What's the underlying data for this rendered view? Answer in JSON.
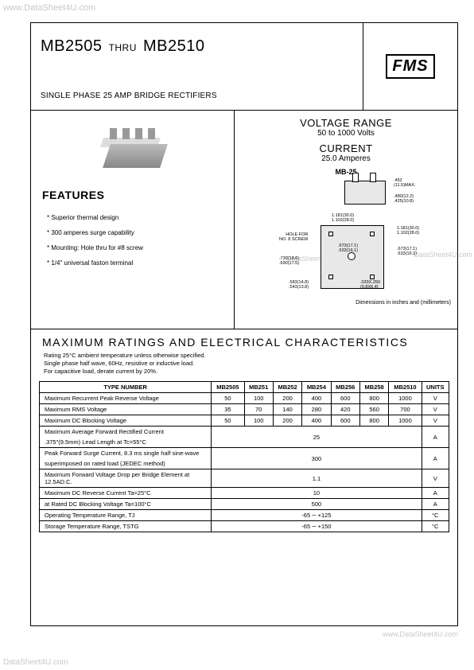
{
  "watermarks": {
    "top": "www.DataSheet4U.com",
    "right": "DataSheet4U.com",
    "center_right": "DataSheet4U.com",
    "bottom_right": "www.DataSheet4U.com",
    "bottom_left": "DataSheet4U.com"
  },
  "header": {
    "part_from": "MB2505",
    "thru": "THRU",
    "part_to": "MB2510",
    "subtitle": "SINGLE PHASE 25 AMP BRIDGE RECTIFIERS",
    "logo": "FMS"
  },
  "voltage_range": {
    "title": "VOLTAGE RANGE",
    "range": "50 to 1000 Volts",
    "current_label": "CURRENT",
    "current": "25.0 Amperes"
  },
  "package_label": "MB-25",
  "dim_note": "Dimensions in inches and (millimeters)",
  "hole_note": "HOLE FOR\nNO. 8 SCREW",
  "dims": {
    "d1": ".452\n(11.5)MAX.",
    "d2": ".480(12.2)\n.425(10.8)",
    "d3": "1.181(30.0)\n1.102(28.0)",
    "d4": ".673(17.1)\n.633(16.1)",
    "d5": "1.181(30.0)\n1.102(28.0)",
    "d6": ".673(17.1)\n.633(16.1)",
    "d7": ".730(18.6)\n.690(17.5)",
    "d8": ".583(14.8)\n.543(13.8)",
    "d9": ".033X.250\n(0.8X6.4)"
  },
  "features": {
    "heading": "FEATURES",
    "items": [
      "* Superior thermal design",
      "* 300 amperes surge capability",
      "* Mounting: Hole thru for #8 screw",
      "* 1/4\" universal faston terminal"
    ]
  },
  "ratings": {
    "heading": "MAXIMUM RATINGS AND ELECTRICAL CHARACTERISTICS",
    "note": "Rating 25°C ambient temperature unless otherwise specified.\nSingle phase half wave, 60Hz, resistive or inductive load.\nFor capacitive load, derate current by 20%.",
    "columns": [
      "TYPE NUMBER",
      "MB2505",
      "MB251",
      "MB252",
      "MB254",
      "MB256",
      "MB258",
      "MB2510",
      "UNITS"
    ],
    "rows": [
      {
        "label": "Maximum Recurrent Peak Reverse Voltage",
        "vals": [
          "50",
          "100",
          "200",
          "400",
          "600",
          "800",
          "1000"
        ],
        "unit": "V"
      },
      {
        "label": "Maximum RMS Voltage",
        "vals": [
          "35",
          "70",
          "140",
          "280",
          "420",
          "560",
          "700"
        ],
        "unit": "V"
      },
      {
        "label": "Maximum DC Blocking Voltage",
        "vals": [
          "50",
          "100",
          "200",
          "400",
          "600",
          "800",
          "1000"
        ],
        "unit": "V"
      }
    ],
    "span_rows": [
      {
        "label_top": "Maximum Average Forward Rectified Current",
        "label_bot": ".375\"(9.5mm) Lead Length at Tc=55°C",
        "val": "25",
        "unit": "A"
      },
      {
        "label_top": "Peak Forward Surge Current, 8.3 ms single half sine-wave",
        "label_bot": "superimposed on rated load (JEDEC method)",
        "val": "300",
        "unit": "A"
      },
      {
        "label_top": "Maximum Forward Voltage Drop per Bridge Element at 12.5AD.C.",
        "label_bot": "",
        "val": "1.1",
        "unit": "V"
      },
      {
        "label_top": "Maximum DC Reverse Current            Ta=25°C",
        "label_bot": "",
        "val": "10",
        "unit": "A"
      },
      {
        "label_top": "at Rated DC Blocking Voltage              Ta=100°C",
        "label_bot": "",
        "val": "500",
        "unit": "A"
      },
      {
        "label_top": "Operating Temperature Range, TJ",
        "label_bot": "",
        "val": "-65 ─ +125",
        "unit": "°C"
      },
      {
        "label_top": "Storage Temperature Range, TSTG",
        "label_bot": "",
        "val": "-65 ─ +150",
        "unit": "°C"
      }
    ]
  }
}
